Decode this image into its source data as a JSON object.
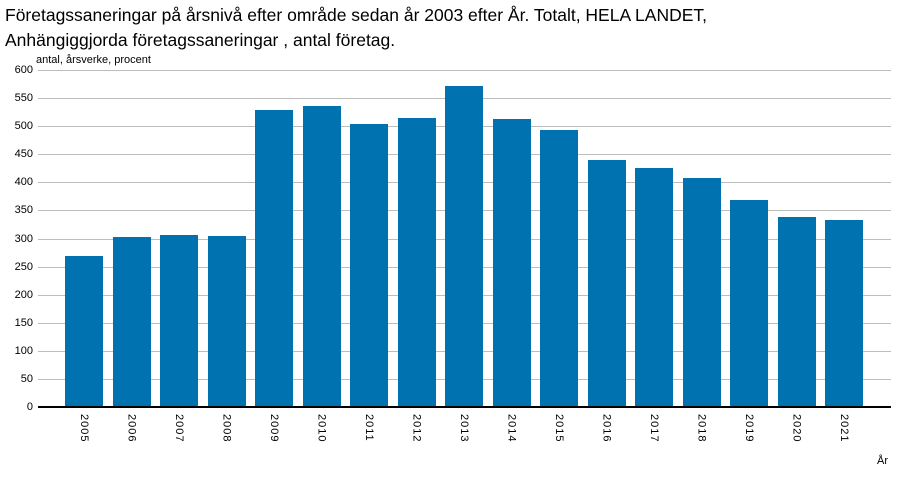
{
  "title": {
    "line1": "Företagssaneringar på årsnivå efter område sedan år 2003 efter År. Totalt, HELA LANDET,",
    "line2": "Anhängiggjorda företagssaneringar , antal företag."
  },
  "unit_label": "antal, årsverke, procent",
  "x_axis_title": "År",
  "colors": {
    "bar": "#0072b0",
    "gridline": "#bdbdbd",
    "axis_line": "#000000",
    "text": "#000000",
    "background": "#ffffff"
  },
  "chart_data": {
    "type": "bar",
    "title": "Företagssaneringar på årsnivå efter område sedan år 2003 efter År. Totalt, HELA LANDET, Anhängiggjorda företagssaneringar , antal företag.",
    "categories": [
      "2005",
      "2006",
      "2007",
      "2008",
      "2009",
      "2010",
      "2011",
      "2012",
      "2013",
      "2014",
      "2015",
      "2016",
      "2017",
      "2018",
      "2019",
      "2020",
      "2021"
    ],
    "values": [
      269,
      302,
      306,
      304,
      528,
      536,
      503,
      515,
      571,
      512,
      494,
      439,
      426,
      407,
      368,
      338,
      333
    ],
    "series_name": "Anhängiggjorda företagssaneringar, antal företag",
    "xlabel": "År",
    "ylabel": "antal, årsverke, procent",
    "ylim": [
      0,
      600
    ],
    "y_ticks": [
      0,
      50,
      100,
      150,
      200,
      250,
      300,
      350,
      400,
      450,
      500,
      550,
      600
    ],
    "grid": true,
    "legend": false
  }
}
